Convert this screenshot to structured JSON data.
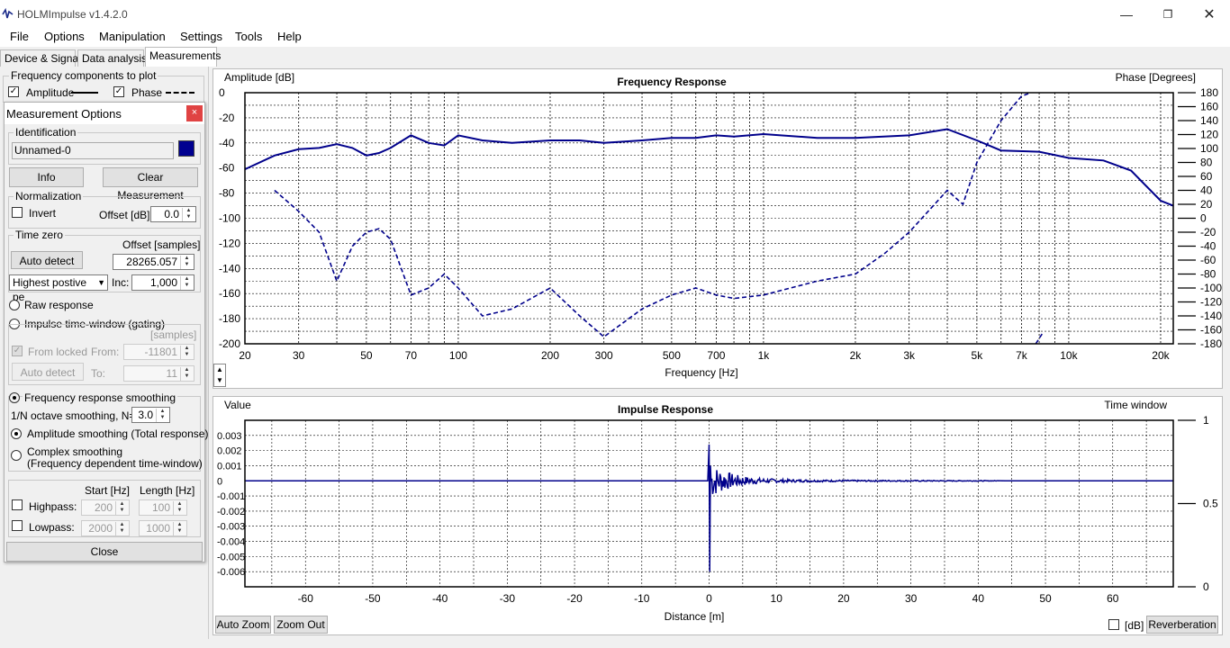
{
  "window": {
    "title": "HOLMImpulse  v1.4.2.0"
  },
  "menu": [
    "File",
    "Options",
    "Manipulation",
    "Settings",
    "Tools",
    "Help"
  ],
  "tabs": [
    "Device & Signal",
    "Data analysis",
    "Measurements"
  ],
  "freq_components": {
    "title": "Frequency components to plot",
    "amplitude": "Amplitude",
    "phase": "Phase"
  },
  "dialog": {
    "title": "Measurement Options",
    "close": "×",
    "identification": {
      "title": "Identification",
      "value": "Unnamed-0",
      "color": "#000090"
    },
    "info_button": "Info",
    "clear_button": "Clear Measurement",
    "normalization": {
      "title": "Normalization",
      "invert": "Invert",
      "offset_label": "Offset [dB]:",
      "offset_value": "0.0"
    },
    "time_zero": {
      "title": "Time zero",
      "offset_label": "Offset [samples]",
      "auto_detect": "Auto detect",
      "offset_value": "28265.057",
      "mode": "Highest postive pe",
      "inc_label": "Inc:",
      "inc_value": "1,000"
    },
    "raw_response": "Raw response",
    "impulse_window": "Impulse time-window (gating)",
    "samples_label": "[samples]",
    "from_locked": "From locked",
    "from_label": "From:",
    "from_value": "-11801",
    "auto_detect2": "Auto detect",
    "to_label": "To:",
    "to_value": "11",
    "smoothing": {
      "title": "Frequency response smoothing",
      "octave_label": "1/N octave smoothing, N=",
      "octave_value": "3.0",
      "amplitude": "Amplitude smoothing (Total response)",
      "complex1": "Complex smoothing",
      "complex2": "(Frequency dependent time-window)"
    },
    "filters": {
      "start_label": "Start [Hz]",
      "length_label": "Length [Hz]",
      "highpass": "Highpass:",
      "highpass_start": "200",
      "highpass_length": "100",
      "lowpass": "Lowpass:",
      "lowpass_start": "2000",
      "lowpass_length": "1000"
    },
    "close_button": "Close"
  },
  "freq_chart": {
    "title": "Frequency Response",
    "ylabel_left": "Amplitude [dB]",
    "ylabel_right": "Phase [Degrees]",
    "xlabel": "Frequency [Hz]",
    "x_ticks": [
      "20",
      "30",
      "50",
      "70",
      "100",
      "200",
      "300",
      "500",
      "700",
      "1k",
      "2k",
      "3k",
      "5k",
      "7k",
      "10k",
      "20k"
    ],
    "y_ticks": [
      "0",
      "-20",
      "-40",
      "-60",
      "-80",
      "-100",
      "-120",
      "-140",
      "-160",
      "-180",
      "-200"
    ],
    "phase_ticks": [
      "180",
      "160",
      "140",
      "120",
      "100",
      "80",
      "60",
      "40",
      "20",
      "0",
      "-20",
      "-40",
      "-60",
      "-80",
      "-100",
      "-120",
      "-140",
      "-160",
      "-180"
    ],
    "line_color": "#00008b"
  },
  "impulse_chart": {
    "title": "Impulse Response",
    "ylabel_left": "Value",
    "ylabel_right": "Time window",
    "xlabel": "Distance [m]",
    "x_ticks": [
      "-60",
      "-50",
      "-40",
      "-30",
      "-20",
      "-10",
      "0",
      "10",
      "20",
      "30",
      "40",
      "50",
      "60"
    ],
    "y_ticks": [
      "0.003",
      "0.002",
      "0.001",
      "0",
      "-0.001",
      "-0.002",
      "-0.003",
      "-0.004",
      "-0.005",
      "-0.006"
    ],
    "window_ticks": [
      "1",
      "0.5",
      "0"
    ]
  },
  "buttons": {
    "auto_zoom": "Auto Zoom",
    "zoom_out": "Zoom Out",
    "db": "[dB]",
    "reverberation": "Reverberation"
  },
  "chart_data": [
    {
      "type": "line",
      "title": "Frequency Response",
      "xlabel": "Frequency [Hz]",
      "ylabel": "Amplitude [dB]",
      "x_scale": "log",
      "xlim": [
        20,
        22000
      ],
      "ylim": [
        -200,
        0
      ],
      "y2label": "Phase [Degrees]",
      "y2lim": [
        -180,
        180
      ],
      "series": [
        {
          "name": "Amplitude",
          "style": "solid",
          "x": [
            20,
            25,
            30,
            35,
            40,
            45,
            50,
            55,
            60,
            70,
            80,
            90,
            100,
            120,
            150,
            200,
            250,
            300,
            400,
            500,
            600,
            700,
            800,
            1000,
            1500,
            2000,
            3000,
            4000,
            5000,
            6000,
            8000,
            10000,
            13000,
            16000,
            20000,
            22000
          ],
          "y": [
            -61,
            -50,
            -45,
            -44,
            -41,
            -44,
            -50,
            -48,
            -44,
            -34,
            -40,
            -42,
            -34,
            -38,
            -40,
            -38,
            -38,
            -40,
            -38,
            -36,
            -36,
            -34,
            -35,
            -33,
            -36,
            -36,
            -34,
            -29,
            -38,
            -46,
            -47,
            -52,
            -54,
            -62,
            -86,
            -90
          ]
        },
        {
          "name": "Phase",
          "style": "dashed",
          "x": [
            25,
            30,
            35,
            40,
            45,
            50,
            55,
            60,
            70,
            80,
            90,
            100,
            120,
            150,
            200,
            250,
            300,
            400,
            500,
            600,
            700,
            800,
            1000,
            1500,
            2000,
            2500,
            3000,
            4000,
            4500,
            5000,
            6000,
            7000,
            7500
          ],
          "y": [
            40,
            10,
            -20,
            -90,
            -40,
            -20,
            -15,
            -30,
            -110,
            -100,
            -80,
            -100,
            -140,
            -130,
            -100,
            -140,
            -170,
            -130,
            -110,
            -100,
            -110,
            -115,
            -110,
            -90,
            -80,
            -50,
            -20,
            40,
            20,
            80,
            140,
            175,
            180
          ]
        }
      ]
    },
    {
      "type": "line",
      "title": "Impulse Response",
      "xlabel": "Distance [m]",
      "ylabel": "Value",
      "xlim": [
        -69,
        69
      ],
      "ylim": [
        -0.007,
        0.004
      ],
      "y2label": "Time window",
      "y2lim": [
        0,
        1
      ],
      "series": [
        {
          "name": "Impulse",
          "x": [
            -69,
            -0.2,
            0,
            0.1,
            0.3,
            0.6,
            1,
            2,
            5,
            10,
            20,
            40,
            69
          ],
          "y": [
            0,
            0,
            0.0024,
            -0.006,
            0.001,
            -0.001,
            0.0005,
            -0.0003,
            0.0002,
            0.0001,
            0,
            0,
            0
          ]
        },
        {
          "name": "Time window",
          "x": [
            -69,
            69
          ],
          "y": [
            0.5,
            0.5
          ]
        }
      ]
    }
  ]
}
